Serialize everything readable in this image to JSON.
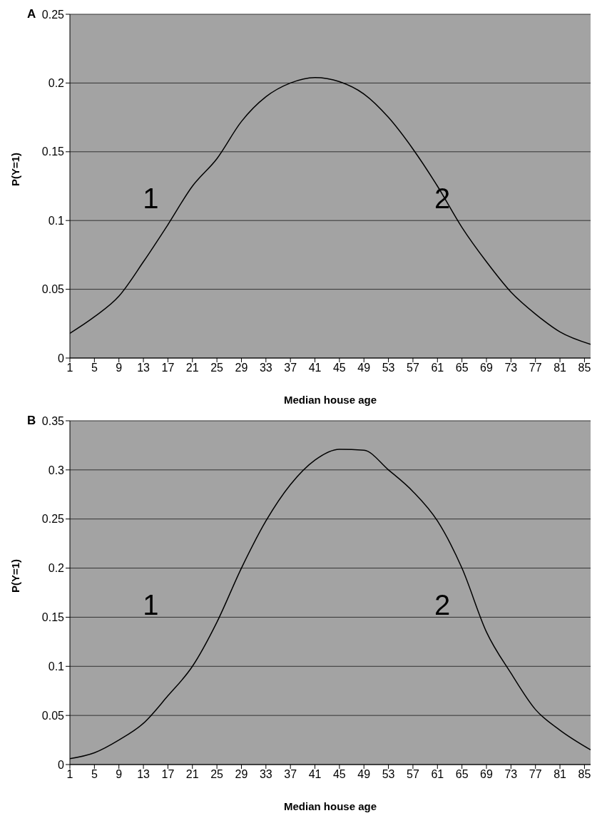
{
  "chart_data": [
    {
      "type": "line",
      "title": "A",
      "xlabel": "Median house age",
      "ylabel": "P(Y=1)",
      "x": [
        1,
        5,
        9,
        13,
        17,
        21,
        25,
        29,
        33,
        37,
        41,
        45,
        49,
        53,
        57,
        61,
        65,
        69,
        73,
        77,
        81,
        86
      ],
      "series": [
        {
          "color": "#000000",
          "values": [
            0.018,
            0.03,
            0.045,
            0.07,
            0.097,
            0.125,
            0.145,
            0.172,
            0.19,
            0.2,
            0.204,
            0.201,
            0.192,
            0.175,
            0.152,
            0.125,
            0.095,
            0.07,
            0.048,
            0.032,
            0.019,
            0.01
          ]
        }
      ],
      "xlim": [
        1,
        86
      ],
      "xticks": [
        1,
        5,
        9,
        13,
        17,
        21,
        25,
        29,
        33,
        37,
        41,
        45,
        49,
        53,
        57,
        61,
        65,
        69,
        73,
        77,
        81,
        85
      ],
      "ylim": [
        0,
        0.25
      ],
      "yticks": [
        0,
        0.05,
        0.1,
        0.15,
        0.2,
        0.25
      ],
      "grid": "y",
      "legend": false,
      "marker": "none",
      "line_style": "solid",
      "annotations": [
        "1",
        "2"
      ]
    },
    {
      "type": "line",
      "title": "B",
      "xlabel": "Median house age",
      "ylabel": "P(Y=1)",
      "x": [
        1,
        5,
        9,
        13,
        17,
        21,
        25,
        29,
        33,
        37,
        41,
        45,
        49,
        53,
        57,
        61,
        65,
        69,
        73,
        77,
        81,
        86
      ],
      "series": [
        {
          "color": "#000000",
          "values": [
            0.006,
            0.012,
            0.025,
            0.042,
            0.07,
            0.1,
            0.145,
            0.2,
            0.248,
            0.285,
            0.31,
            0.321,
            0.32,
            0.3,
            0.278,
            0.248,
            0.2,
            0.135,
            0.093,
            0.056,
            0.035,
            0.015
          ]
        }
      ],
      "xlim": [
        1,
        86
      ],
      "xticks": [
        1,
        5,
        9,
        13,
        17,
        21,
        25,
        29,
        33,
        37,
        41,
        45,
        49,
        53,
        57,
        61,
        65,
        69,
        73,
        77,
        81,
        85
      ],
      "ylim": [
        0,
        0.35
      ],
      "yticks": [
        0,
        0.05,
        0.1,
        0.15,
        0.2,
        0.25,
        0.3,
        0.35
      ],
      "grid": "y",
      "legend": false,
      "marker": "none",
      "line_style": "solid",
      "annotations": [
        "1",
        "2"
      ]
    }
  ]
}
